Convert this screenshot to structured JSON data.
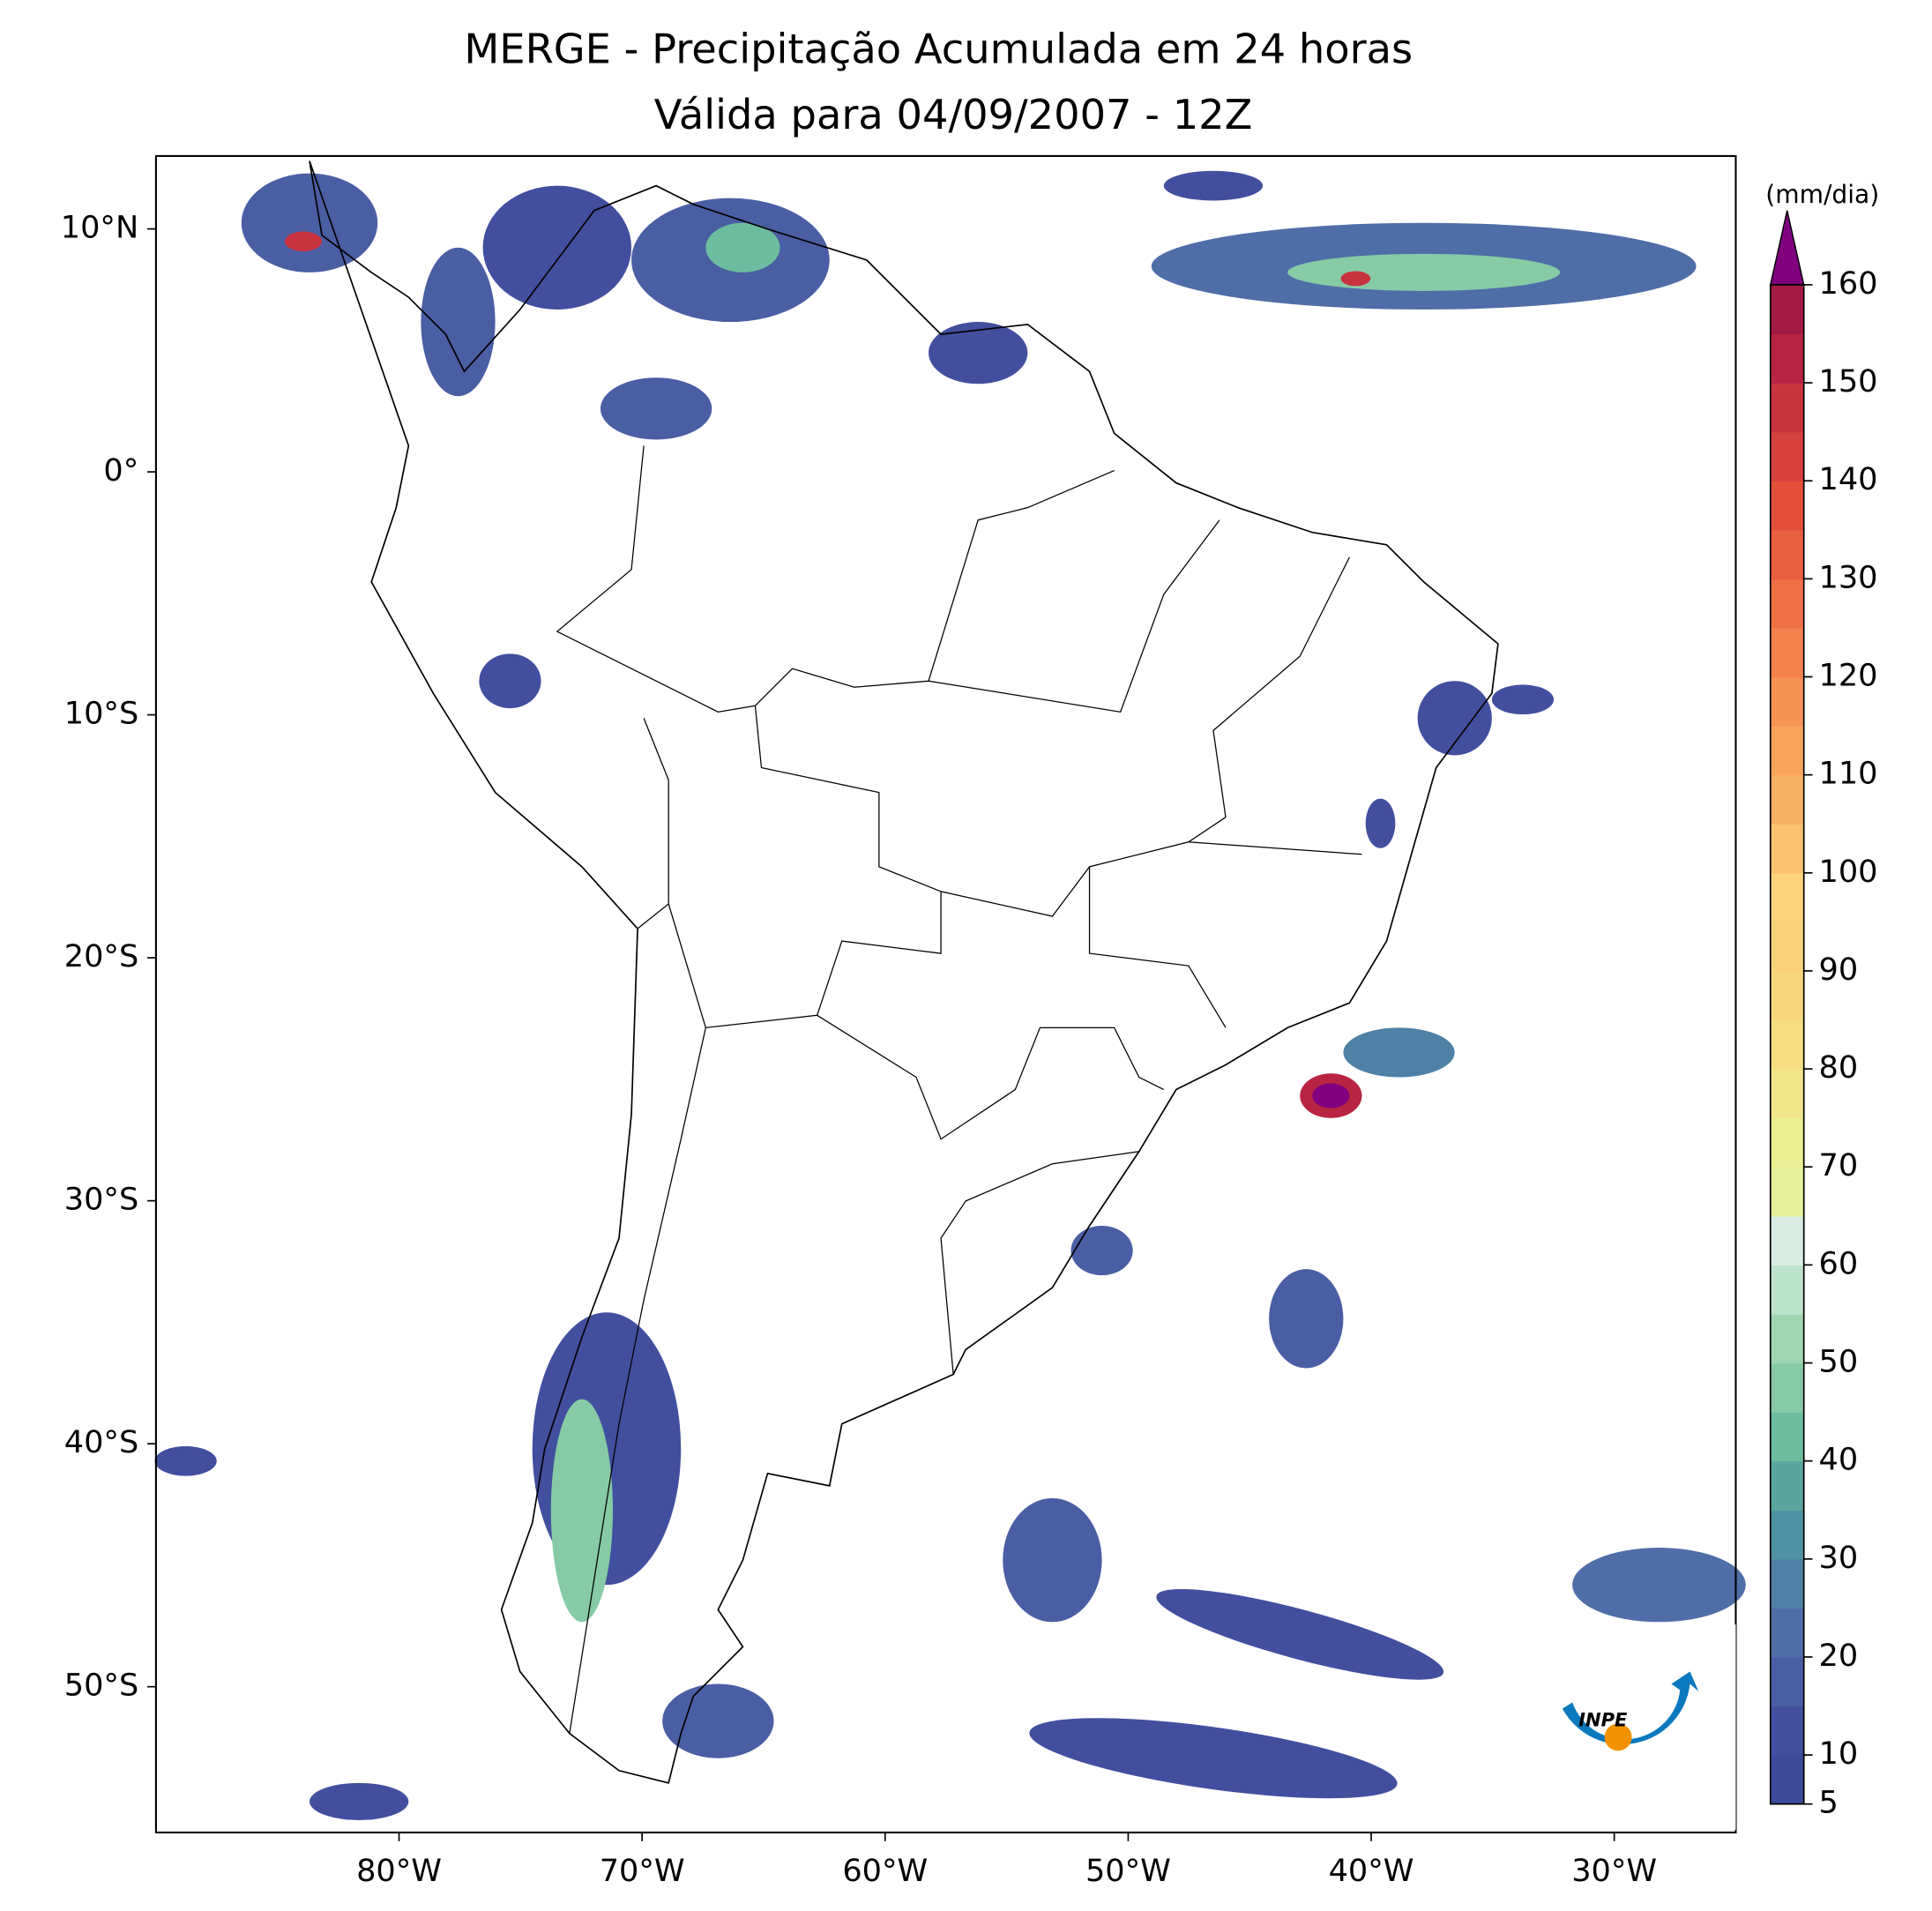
{
  "title": "MERGE - Precipitação Acumulada em 24 horas",
  "subtitle": "Válida para 04/09/2007 - 12Z",
  "map": {
    "xlim": [
      -90,
      -25
    ],
    "ylim": [
      -56,
      13
    ],
    "xticks": [
      {
        "value": -80,
        "label": "80°W"
      },
      {
        "value": -70,
        "label": "70°W"
      },
      {
        "value": -60,
        "label": "60°W"
      },
      {
        "value": -50,
        "label": "50°W"
      },
      {
        "value": -40,
        "label": "40°W"
      },
      {
        "value": -30,
        "label": "30°W"
      }
    ],
    "yticks": [
      {
        "value": 10,
        "label": "10°N"
      },
      {
        "value": 0,
        "label": "0°"
      },
      {
        "value": -10,
        "label": "10°S"
      },
      {
        "value": -20,
        "label": "20°S"
      },
      {
        "value": -30,
        "label": "30°S"
      },
      {
        "value": -40,
        "label": "40°S"
      },
      {
        "value": -50,
        "label": "50°S"
      }
    ]
  },
  "colorbar": {
    "label": "(mm/dia)",
    "ticks": [
      5,
      10,
      20,
      30,
      40,
      50,
      60,
      70,
      80,
      90,
      100,
      110,
      120,
      130,
      140,
      150,
      160
    ],
    "levels": [
      5,
      10,
      15,
      20,
      25,
      30,
      35,
      40,
      45,
      50,
      55,
      60,
      65,
      70,
      75,
      80,
      85,
      90,
      95,
      100,
      105,
      110,
      115,
      120,
      125,
      130,
      135,
      140,
      145,
      150,
      155,
      160
    ],
    "colors": [
      "#3d4a9a",
      "#424f9f",
      "#4a5ea4",
      "#4f6ea8",
      "#4f80a6",
      "#4f92a4",
      "#5aa59e",
      "#6cbd9f",
      "#86cba5",
      "#9fd5b0",
      "#bde3cc",
      "#d9ede5",
      "#e6f19a",
      "#ebee93",
      "#f1e48b",
      "#f5dd84",
      "#f8d67f",
      "#fbd27c",
      "#fdd47d",
      "#fcc170",
      "#f9b166",
      "#f8a45e",
      "#f69457",
      "#f4824e",
      "#f07046",
      "#ea5f40",
      "#e2503c",
      "#d6413d",
      "#c9323f",
      "#b82441",
      "#a31a45"
    ],
    "extend_color": "#800080"
  },
  "logo": {
    "text": "INPE"
  }
}
